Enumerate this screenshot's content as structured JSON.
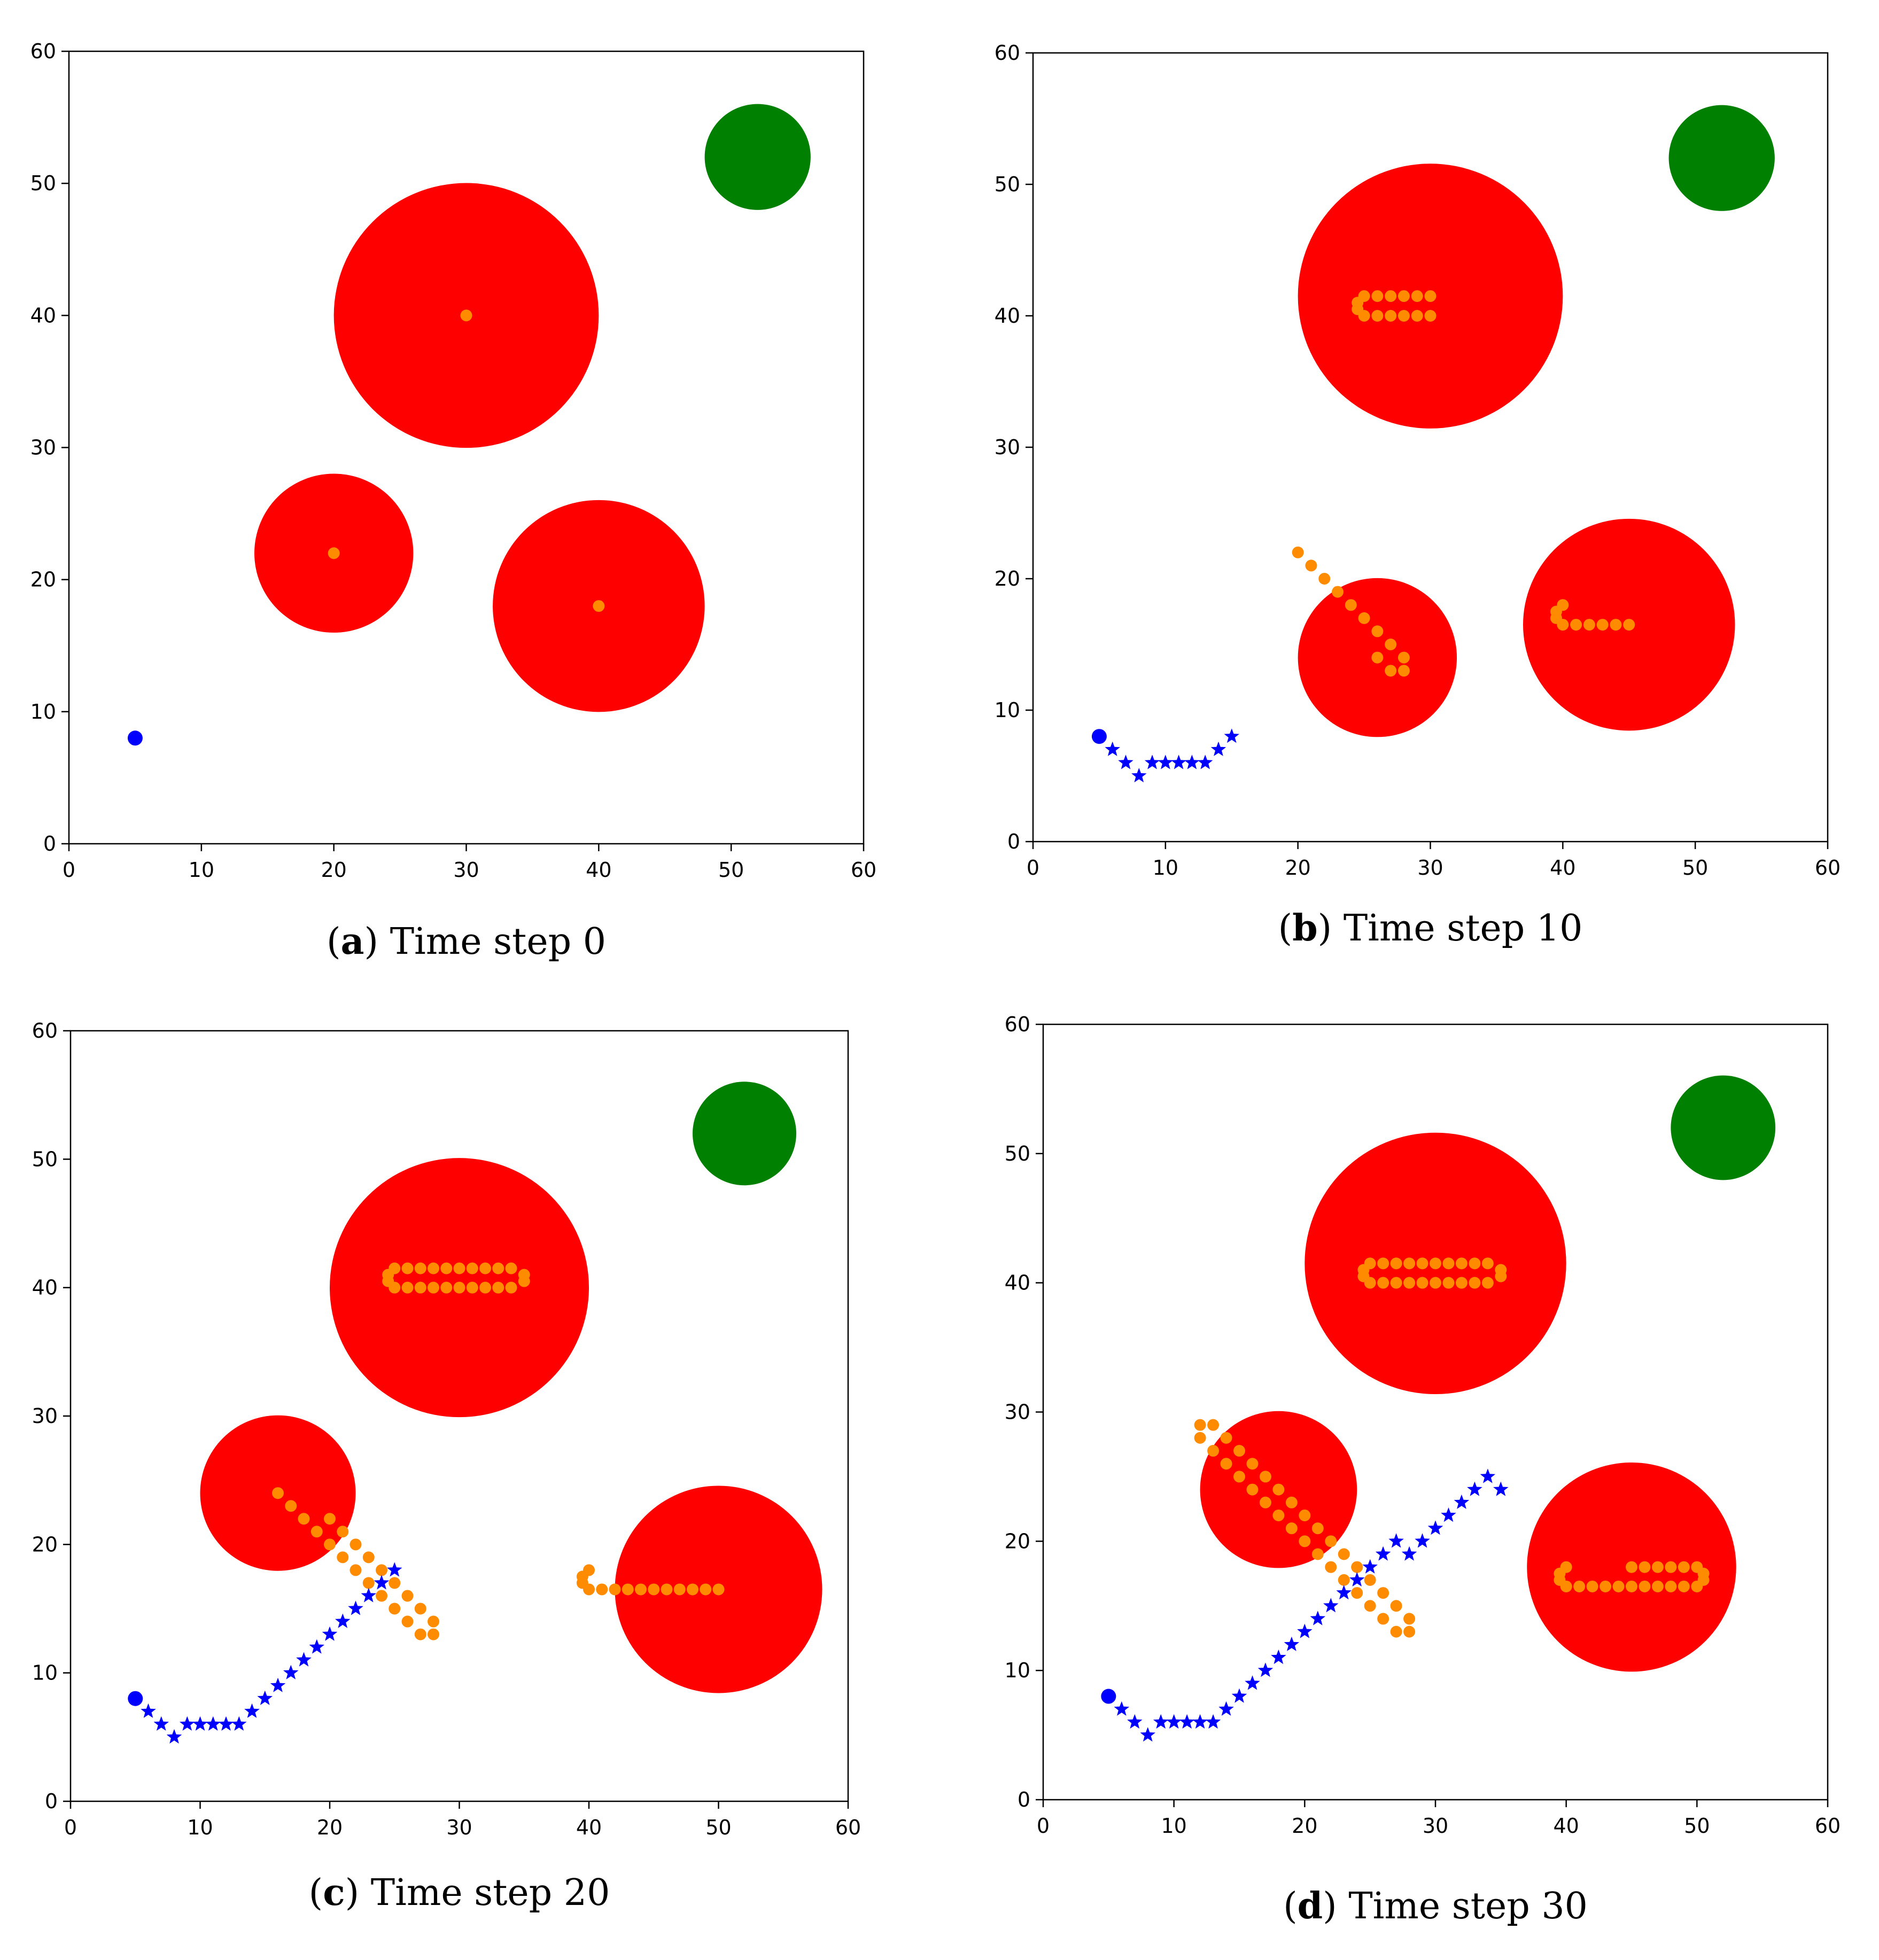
{
  "chart_data": [
    {
      "type": "scatter",
      "caption": {
        "letter": "a",
        "text": "Time step 0"
      },
      "xlim": [
        0,
        60
      ],
      "ylim": [
        0,
        60
      ],
      "xticks": [
        0,
        10,
        20,
        30,
        40,
        50,
        60
      ],
      "yticks": [
        0,
        10,
        20,
        30,
        40,
        50,
        60
      ],
      "grid": false,
      "colors": {
        "obstacle": "#ff0000",
        "goal": "#008000",
        "trail": "#ff8c00",
        "agent": "#0000ff"
      },
      "goal": {
        "x": 52,
        "y": 52,
        "r": 4
      },
      "obstacles": [
        {
          "x": 30,
          "y": 40,
          "r": 10
        },
        {
          "x": 20,
          "y": 22,
          "r": 6
        },
        {
          "x": 40,
          "y": 18,
          "r": 8
        }
      ],
      "obstacle_trails": [
        [
          [
            30,
            40
          ]
        ],
        [
          [
            20,
            22
          ]
        ],
        [
          [
            40,
            18
          ]
        ]
      ],
      "agent_start": {
        "x": 5,
        "y": 8
      },
      "agent_path": []
    },
    {
      "type": "scatter",
      "caption": {
        "letter": "b",
        "text": "Time step 10"
      },
      "xlim": [
        0,
        60
      ],
      "ylim": [
        0,
        60
      ],
      "xticks": [
        0,
        10,
        20,
        30,
        40,
        50,
        60
      ],
      "yticks": [
        0,
        10,
        20,
        30,
        40,
        50,
        60
      ],
      "grid": false,
      "colors": {
        "obstacle": "#ff0000",
        "goal": "#008000",
        "trail": "#ff8c00",
        "agent": "#0000ff"
      },
      "goal": {
        "x": 52,
        "y": 52,
        "r": 4
      },
      "obstacles": [
        {
          "x": 30,
          "y": 41.5,
          "r": 10
        },
        {
          "x": 26,
          "y": 14,
          "r": 6
        },
        {
          "x": 45,
          "y": 16.5,
          "r": 8
        }
      ],
      "obstacle_trails": [
        [
          [
            30,
            40
          ],
          [
            29,
            40
          ],
          [
            28,
            40
          ],
          [
            27,
            40
          ],
          [
            26,
            40
          ],
          [
            25,
            40
          ],
          [
            24.5,
            40.5
          ],
          [
            24.5,
            41
          ],
          [
            25,
            41.5
          ],
          [
            26,
            41.5
          ],
          [
            27,
            41.5
          ],
          [
            28,
            41.5
          ],
          [
            29,
            41.5
          ],
          [
            30,
            41.5
          ]
        ],
        [
          [
            20,
            22
          ],
          [
            21,
            21
          ],
          [
            22,
            20
          ],
          [
            23,
            19
          ],
          [
            24,
            18
          ],
          [
            25,
            17
          ],
          [
            26,
            16
          ],
          [
            27,
            15
          ],
          [
            28,
            14
          ],
          [
            28,
            13
          ],
          [
            27,
            13
          ],
          [
            26,
            14
          ]
        ],
        [
          [
            40,
            18
          ],
          [
            39.5,
            17.5
          ],
          [
            39.5,
            17
          ],
          [
            40,
            16.5
          ],
          [
            41,
            16.5
          ],
          [
            42,
            16.5
          ],
          [
            43,
            16.5
          ],
          [
            44,
            16.5
          ],
          [
            45,
            16.5
          ]
        ]
      ],
      "agent_start": {
        "x": 5,
        "y": 8
      },
      "agent_path": [
        [
          6,
          7
        ],
        [
          7,
          6
        ],
        [
          8,
          5
        ],
        [
          9,
          6
        ],
        [
          10,
          6
        ],
        [
          11,
          6
        ],
        [
          12,
          6
        ],
        [
          13,
          6
        ],
        [
          14,
          7
        ],
        [
          15,
          8
        ]
      ]
    },
    {
      "type": "scatter",
      "caption": {
        "letter": "c",
        "text": "Time step 20"
      },
      "xlim": [
        0,
        60
      ],
      "ylim": [
        0,
        60
      ],
      "xticks": [
        0,
        10,
        20,
        30,
        40,
        50,
        60
      ],
      "yticks": [
        0,
        10,
        20,
        30,
        40,
        50,
        60
      ],
      "grid": false,
      "colors": {
        "obstacle": "#ff0000",
        "goal": "#008000",
        "trail": "#ff8c00",
        "agent": "#0000ff"
      },
      "goal": {
        "x": 52,
        "y": 52,
        "r": 4
      },
      "obstacles": [
        {
          "x": 30,
          "y": 40,
          "r": 10
        },
        {
          "x": 16,
          "y": 24,
          "r": 6
        },
        {
          "x": 50,
          "y": 16.5,
          "r": 8
        }
      ],
      "obstacle_trails": [
        [
          [
            25,
            40
          ],
          [
            26,
            40
          ],
          [
            27,
            40
          ],
          [
            28,
            40
          ],
          [
            29,
            40
          ],
          [
            30,
            40
          ],
          [
            31,
            40
          ],
          [
            32,
            40
          ],
          [
            33,
            40
          ],
          [
            34,
            40
          ],
          [
            35,
            40.5
          ],
          [
            35,
            41
          ],
          [
            34,
            41.5
          ],
          [
            33,
            41.5
          ],
          [
            32,
            41.5
          ],
          [
            31,
            41.5
          ],
          [
            30,
            41.5
          ],
          [
            29,
            41.5
          ],
          [
            28,
            41.5
          ],
          [
            27,
            41.5
          ],
          [
            26,
            41.5
          ],
          [
            25,
            41.5
          ],
          [
            24.5,
            41
          ],
          [
            24.5,
            40.5
          ]
        ],
        [
          [
            16,
            24
          ],
          [
            17,
            23
          ],
          [
            18,
            22
          ],
          [
            19,
            21
          ],
          [
            20,
            20
          ],
          [
            21,
            19
          ],
          [
            22,
            18
          ],
          [
            23,
            17
          ],
          [
            24,
            16
          ],
          [
            25,
            15
          ],
          [
            26,
            14
          ],
          [
            27,
            13
          ],
          [
            28,
            13
          ],
          [
            28,
            14
          ],
          [
            27,
            15
          ],
          [
            26,
            16
          ],
          [
            25,
            17
          ],
          [
            24,
            18
          ],
          [
            23,
            19
          ],
          [
            22,
            20
          ],
          [
            21,
            21
          ],
          [
            20,
            22
          ]
        ],
        [
          [
            40,
            18
          ],
          [
            39.5,
            17.5
          ],
          [
            39.5,
            17
          ],
          [
            40,
            16.5
          ],
          [
            41,
            16.5
          ],
          [
            42,
            16.5
          ],
          [
            43,
            16.5
          ],
          [
            44,
            16.5
          ],
          [
            45,
            16.5
          ],
          [
            46,
            16.5
          ],
          [
            47,
            16.5
          ],
          [
            48,
            16.5
          ],
          [
            49,
            16.5
          ],
          [
            50,
            16.5
          ]
        ]
      ],
      "agent_start": {
        "x": 5,
        "y": 8
      },
      "agent_path": [
        [
          6,
          7
        ],
        [
          7,
          6
        ],
        [
          8,
          5
        ],
        [
          9,
          6
        ],
        [
          10,
          6
        ],
        [
          11,
          6
        ],
        [
          12,
          6
        ],
        [
          13,
          6
        ],
        [
          14,
          7
        ],
        [
          15,
          8
        ],
        [
          16,
          9
        ],
        [
          17,
          10
        ],
        [
          18,
          11
        ],
        [
          19,
          12
        ],
        [
          20,
          13
        ],
        [
          21,
          14
        ],
        [
          22,
          15
        ],
        [
          23,
          16
        ],
        [
          24,
          17
        ],
        [
          25,
          18
        ]
      ]
    },
    {
      "type": "scatter",
      "caption": {
        "letter": "d",
        "text": "Time step 30"
      },
      "xlim": [
        0,
        60
      ],
      "ylim": [
        0,
        60
      ],
      "xticks": [
        0,
        10,
        20,
        30,
        40,
        50,
        60
      ],
      "yticks": [
        0,
        10,
        20,
        30,
        40,
        50,
        60
      ],
      "grid": false,
      "colors": {
        "obstacle": "#ff0000",
        "goal": "#008000",
        "trail": "#ff8c00",
        "agent": "#0000ff"
      },
      "goal": {
        "x": 52,
        "y": 52,
        "r": 4
      },
      "obstacles": [
        {
          "x": 30,
          "y": 41.5,
          "r": 10
        },
        {
          "x": 18,
          "y": 24,
          "r": 6
        },
        {
          "x": 45,
          "y": 18,
          "r": 8
        }
      ],
      "obstacle_trails": [
        [
          [
            25,
            40
          ],
          [
            26,
            40
          ],
          [
            27,
            40
          ],
          [
            28,
            40
          ],
          [
            29,
            40
          ],
          [
            30,
            40
          ],
          [
            31,
            40
          ],
          [
            32,
            40
          ],
          [
            33,
            40
          ],
          [
            34,
            40
          ],
          [
            35,
            40.5
          ],
          [
            35,
            41
          ],
          [
            34,
            41.5
          ],
          [
            33,
            41.5
          ],
          [
            32,
            41.5
          ],
          [
            31,
            41.5
          ],
          [
            30,
            41.5
          ],
          [
            29,
            41.5
          ],
          [
            28,
            41.5
          ],
          [
            27,
            41.5
          ],
          [
            26,
            41.5
          ],
          [
            25,
            41.5
          ],
          [
            24.5,
            41
          ],
          [
            24.5,
            40.5
          ]
        ],
        [
          [
            12,
            29
          ],
          [
            13,
            29
          ],
          [
            12,
            28
          ],
          [
            13,
            27
          ],
          [
            14,
            28
          ],
          [
            14,
            26
          ],
          [
            15,
            27
          ],
          [
            15,
            25
          ],
          [
            16,
            26
          ],
          [
            16,
            24
          ],
          [
            17,
            25
          ],
          [
            17,
            23
          ],
          [
            18,
            24
          ],
          [
            18,
            22
          ],
          [
            19,
            23
          ],
          [
            19,
            21
          ],
          [
            20,
            22
          ],
          [
            20,
            20
          ],
          [
            21,
            21
          ],
          [
            21,
            19
          ],
          [
            22,
            20
          ],
          [
            22,
            18
          ],
          [
            23,
            19
          ],
          [
            23,
            17
          ],
          [
            24,
            18
          ],
          [
            24,
            16
          ],
          [
            25,
            17
          ],
          [
            25,
            15
          ],
          [
            26,
            16
          ],
          [
            26,
            14
          ],
          [
            27,
            15
          ],
          [
            27,
            13
          ],
          [
            28,
            14
          ],
          [
            28,
            13
          ]
        ],
        [
          [
            40,
            18
          ],
          [
            39.5,
            17.5
          ],
          [
            39.5,
            17
          ],
          [
            40,
            16.5
          ],
          [
            41,
            16.5
          ],
          [
            42,
            16.5
          ],
          [
            43,
            16.5
          ],
          [
            44,
            16.5
          ],
          [
            45,
            16.5
          ],
          [
            46,
            16.5
          ],
          [
            47,
            16.5
          ],
          [
            48,
            16.5
          ],
          [
            49,
            16.5
          ],
          [
            50,
            16.5
          ],
          [
            50.5,
            17
          ],
          [
            50.5,
            17.5
          ],
          [
            50,
            18
          ],
          [
            49,
            18
          ],
          [
            48,
            18
          ],
          [
            47,
            18
          ],
          [
            46,
            18
          ],
          [
            45,
            18
          ]
        ]
      ],
      "agent_start": {
        "x": 5,
        "y": 8
      },
      "agent_path": [
        [
          6,
          7
        ],
        [
          7,
          6
        ],
        [
          8,
          5
        ],
        [
          9,
          6
        ],
        [
          10,
          6
        ],
        [
          11,
          6
        ],
        [
          12,
          6
        ],
        [
          13,
          6
        ],
        [
          14,
          7
        ],
        [
          15,
          8
        ],
        [
          16,
          9
        ],
        [
          17,
          10
        ],
        [
          18,
          11
        ],
        [
          19,
          12
        ],
        [
          20,
          13
        ],
        [
          21,
          14
        ],
        [
          22,
          15
        ],
        [
          23,
          16
        ],
        [
          24,
          17
        ],
        [
          25,
          18
        ],
        [
          26,
          19
        ],
        [
          27,
          20
        ],
        [
          28,
          19
        ],
        [
          29,
          20
        ],
        [
          30,
          21
        ],
        [
          31,
          22
        ],
        [
          32,
          23
        ],
        [
          33,
          24
        ],
        [
          34,
          25
        ],
        [
          35,
          24
        ]
      ]
    }
  ]
}
